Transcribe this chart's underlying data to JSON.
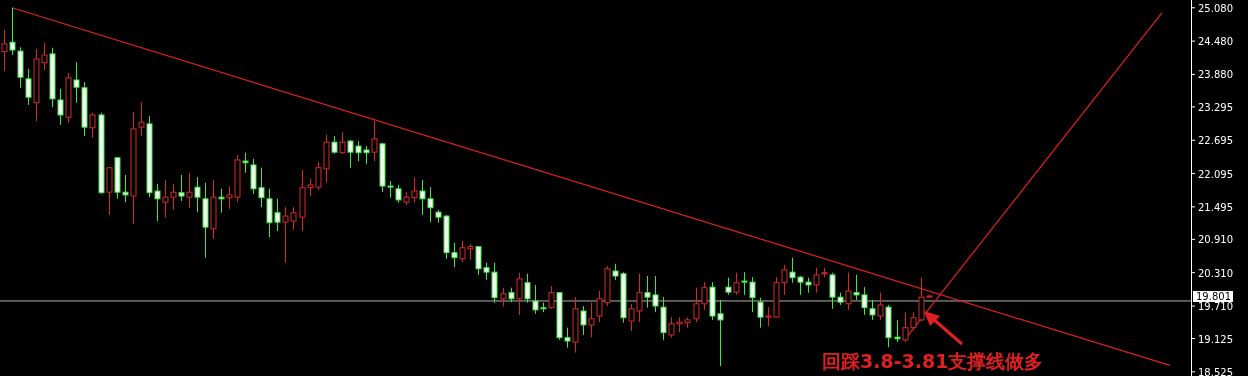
{
  "chart_data": {
    "type": "candlestick",
    "categories": [
      null,
      null,
      null,
      null,
      null,
      null,
      null,
      null,
      null,
      null,
      null,
      null,
      null,
      null,
      null,
      null,
      null,
      null,
      null,
      null,
      null,
      null,
      null,
      null,
      null,
      null,
      null,
      null,
      null,
      null,
      null,
      null,
      null,
      null,
      null,
      null,
      null,
      null,
      null,
      null,
      null,
      null,
      null,
      null,
      null,
      null,
      null,
      null,
      null,
      null,
      null,
      null,
      null,
      null,
      null,
      null,
      null,
      null,
      null,
      null,
      null,
      null,
      null,
      null,
      null,
      null,
      null,
      null,
      null,
      null,
      null,
      null,
      null,
      null,
      null,
      null,
      null,
      null,
      null,
      null,
      null,
      null,
      null,
      null,
      null,
      null,
      null,
      null,
      null,
      null,
      null,
      null,
      null,
      null,
      null,
      null,
      null,
      null,
      null,
      null,
      null,
      null,
      null,
      null,
      null,
      null,
      null,
      null,
      null,
      null,
      null,
      null,
      null,
      null,
      null,
      null,
      null,
      null,
      null,
      null,
      null,
      null,
      null,
      null,
      null,
      null,
      null,
      null,
      null,
      null,
      null,
      null,
      null,
      null,
      null,
      null,
      null,
      null,
      null,
      null,
      null,
      null,
      null,
      null,
      null,
      null,
      null,
      null
    ],
    "ohlc": [
      [
        24.29,
        24.68,
        23.94,
        24.43
      ],
      [
        24.46,
        25.08,
        24.23,
        24.32
      ],
      [
        24.3,
        24.37,
        23.64,
        23.83
      ],
      [
        23.8,
        23.98,
        23.33,
        23.47
      ],
      [
        23.37,
        24.34,
        23.04,
        24.16
      ],
      [
        24.09,
        24.45,
        23.96,
        24.23
      ],
      [
        24.25,
        24.36,
        23.29,
        23.44
      ],
      [
        23.42,
        23.62,
        22.97,
        23.15
      ],
      [
        23.11,
        23.91,
        23.01,
        23.82
      ],
      [
        23.78,
        24.1,
        23.37,
        23.65
      ],
      [
        23.64,
        23.74,
        22.77,
        22.93
      ],
      [
        22.92,
        23.19,
        22.74,
        23.15
      ],
      [
        23.15,
        23.19,
        21.73,
        21.75
      ],
      [
        21.76,
        22.21,
        21.35,
        22.2
      ],
      [
        22.38,
        22.39,
        21.64,
        21.76
      ],
      [
        21.76,
        22.07,
        21.58,
        21.71
      ],
      [
        21.69,
        23.2,
        21.19,
        22.9
      ],
      [
        22.93,
        23.38,
        22.77,
        23.02
      ],
      [
        22.99,
        23.13,
        21.67,
        21.75
      ],
      [
        21.78,
        21.91,
        21.24,
        21.64
      ],
      [
        21.58,
        21.98,
        21.3,
        21.67
      ],
      [
        21.67,
        21.91,
        21.44,
        21.76
      ],
      [
        21.75,
        22.07,
        21.6,
        21.69
      ],
      [
        21.67,
        22.11,
        21.48,
        21.76
      ],
      [
        21.85,
        22.03,
        21.4,
        21.67
      ],
      [
        21.64,
        21.93,
        20.58,
        21.13
      ],
      [
        21.1,
        21.98,
        20.92,
        21.67
      ],
      [
        21.67,
        21.82,
        21.39,
        21.64
      ],
      [
        21.66,
        21.87,
        21.46,
        21.71
      ],
      [
        21.67,
        22.43,
        21.58,
        22.34
      ],
      [
        22.32,
        22.47,
        22.11,
        22.29
      ],
      [
        22.25,
        22.36,
        21.73,
        21.82
      ],
      [
        21.84,
        22.2,
        21.49,
        21.66
      ],
      [
        21.64,
        21.82,
        20.95,
        21.21
      ],
      [
        21.39,
        21.64,
        21.06,
        21.22
      ],
      [
        21.22,
        21.49,
        20.49,
        21.33
      ],
      [
        21.24,
        21.49,
        21.08,
        21.39
      ],
      [
        21.31,
        22.16,
        21.06,
        21.84
      ],
      [
        21.84,
        22.0,
        21.69,
        21.89
      ],
      [
        21.85,
        22.3,
        21.8,
        22.2
      ],
      [
        22.18,
        22.79,
        21.93,
        22.66
      ],
      [
        22.66,
        22.77,
        22.45,
        22.48
      ],
      [
        22.47,
        22.84,
        22.45,
        22.66
      ],
      [
        22.68,
        22.7,
        22.2,
        22.48
      ],
      [
        22.59,
        22.68,
        22.32,
        22.47
      ],
      [
        22.52,
        22.59,
        22.27,
        22.47
      ],
      [
        22.48,
        23.04,
        22.32,
        22.72
      ],
      [
        22.63,
        22.65,
        21.76,
        21.87
      ],
      [
        21.87,
        21.96,
        21.66,
        21.85
      ],
      [
        21.82,
        21.89,
        21.57,
        21.62
      ],
      [
        21.58,
        21.76,
        21.53,
        21.67
      ],
      [
        21.66,
        22.03,
        21.58,
        21.78
      ],
      [
        21.78,
        21.98,
        21.35,
        21.64
      ],
      [
        21.64,
        21.85,
        21.22,
        21.48
      ],
      [
        21.4,
        21.44,
        21.21,
        21.31
      ],
      [
        21.33,
        21.35,
        20.56,
        20.67
      ],
      [
        20.67,
        20.85,
        20.41,
        20.58
      ],
      [
        20.56,
        20.88,
        20.5,
        20.76
      ],
      [
        20.74,
        20.83,
        20.54,
        20.78
      ],
      [
        20.78,
        20.78,
        20.27,
        20.38
      ],
      [
        20.4,
        20.49,
        20.18,
        20.32
      ],
      [
        20.32,
        20.49,
        19.77,
        19.86
      ],
      [
        19.84,
        20.04,
        19.7,
        19.93
      ],
      [
        19.95,
        20.04,
        19.78,
        19.84
      ],
      [
        19.84,
        20.31,
        19.55,
        20.2
      ],
      [
        20.13,
        20.29,
        19.77,
        19.84
      ],
      [
        19.8,
        20.09,
        19.57,
        19.64
      ],
      [
        19.68,
        19.77,
        19.6,
        19.66
      ],
      [
        19.68,
        20.07,
        19.66,
        19.95
      ],
      [
        19.95,
        19.96,
        19.1,
        19.14
      ],
      [
        19.14,
        19.32,
        18.96,
        19.08
      ],
      [
        19.06,
        19.87,
        18.87,
        19.66
      ],
      [
        19.62,
        19.71,
        19.19,
        19.37
      ],
      [
        19.37,
        19.77,
        19.15,
        19.48
      ],
      [
        19.53,
        19.98,
        19.42,
        19.84
      ],
      [
        19.77,
        20.43,
        19.71,
        20.38
      ],
      [
        20.34,
        20.47,
        20.18,
        20.25
      ],
      [
        20.29,
        20.32,
        19.41,
        19.5
      ],
      [
        19.44,
        19.75,
        19.26,
        19.66
      ],
      [
        19.62,
        20.29,
        19.42,
        19.95
      ],
      [
        19.95,
        20.25,
        19.68,
        19.87
      ],
      [
        19.91,
        20.25,
        19.6,
        19.71
      ],
      [
        19.69,
        19.87,
        19.1,
        19.23
      ],
      [
        19.19,
        19.51,
        19.14,
        19.39
      ],
      [
        19.39,
        19.51,
        19.24,
        19.42
      ],
      [
        19.41,
        19.5,
        19.32,
        19.46
      ],
      [
        19.48,
        20.04,
        19.42,
        19.75
      ],
      [
        19.75,
        20.14,
        19.64,
        20.04
      ],
      [
        20.05,
        20.14,
        19.46,
        19.53
      ],
      [
        19.57,
        19.82,
        18.63,
        19.46
      ],
      [
        20.05,
        20.22,
        19.91,
        19.96
      ],
      [
        19.96,
        20.31,
        19.91,
        20.13
      ],
      [
        20.16,
        20.32,
        19.91,
        20.14
      ],
      [
        20.14,
        20.23,
        19.6,
        19.86
      ],
      [
        19.78,
        19.86,
        19.32,
        19.51
      ],
      [
        19.51,
        19.69,
        19.35,
        19.53
      ],
      [
        19.51,
        20.23,
        19.51,
        20.13
      ],
      [
        20.13,
        20.45,
        19.91,
        20.36
      ],
      [
        20.32,
        20.58,
        20.13,
        20.22
      ],
      [
        20.23,
        20.25,
        19.91,
        20.14
      ],
      [
        20.14,
        20.22,
        19.95,
        20.09
      ],
      [
        20.09,
        20.4,
        19.95,
        20.27
      ],
      [
        20.29,
        20.4,
        20.23,
        20.31
      ],
      [
        20.27,
        20.31,
        19.66,
        19.87
      ],
      [
        19.87,
        19.95,
        19.73,
        19.78
      ],
      [
        19.75,
        20.31,
        19.64,
        19.98
      ],
      [
        19.95,
        20.27,
        19.82,
        19.91
      ],
      [
        19.91,
        20.05,
        19.55,
        19.68
      ],
      [
        19.66,
        19.82,
        19.46,
        19.55
      ],
      [
        19.53,
        19.95,
        19.46,
        19.73
      ],
      [
        19.69,
        19.73,
        18.97,
        19.14
      ],
      [
        19.15,
        19.46,
        19.06,
        19.12
      ],
      [
        19.1,
        19.6,
        19.06,
        19.32
      ],
      [
        19.32,
        19.6,
        19.28,
        19.5
      ],
      [
        19.46,
        20.22,
        19.44,
        19.87
      ],
      [
        19.87,
        19.91,
        19.86,
        19.89
      ],
      null,
      null,
      null,
      null,
      null,
      null,
      null,
      null,
      null,
      null,
      null,
      null,
      null,
      null,
      null,
      null,
      null,
      null,
      null,
      null,
      null,
      null,
      null,
      null,
      null,
      null,
      null,
      null,
      null,
      null,
      null,
      null
    ],
    "colors": [
      "#d42a2a",
      "#3ee83e",
      "#3ee83e",
      "#3ee83e",
      "#d42a2a",
      "#d42a2a",
      "#3ee83e",
      "#3ee83e",
      "#d42a2a",
      "#3ee83e",
      "#3ee83e",
      "#d42a2a",
      "#3ee83e",
      "#d42a2a",
      "#3ee83e",
      "#3ee83e",
      "#d42a2a",
      "#d42a2a",
      "#3ee83e",
      "#3ee83e",
      "#d42a2a",
      "#d42a2a",
      "#3ee83e",
      "#d42a2a",
      "#3ee83e",
      "#3ee83e",
      "#d42a2a",
      "#3ee83e",
      "#d42a2a",
      "#d42a2a",
      "#3ee83e",
      "#3ee83e",
      "#3ee83e",
      "#3ee83e",
      "#3ee83e",
      "#d42a2a",
      "#d42a2a",
      "#d42a2a",
      "#d42a2a",
      "#d42a2a",
      "#d42a2a",
      "#3ee83e",
      "#d42a2a",
      "#3ee83e",
      "#3ee83e",
      "#3ee83e",
      "#d42a2a",
      "#3ee83e",
      "#3ee83e",
      "#3ee83e",
      "#d42a2a",
      "#d42a2a",
      "#3ee83e",
      "#3ee83e",
      "#3ee83e",
      "#3ee83e",
      "#3ee83e",
      "#d42a2a",
      "#d42a2a",
      "#3ee83e",
      "#3ee83e",
      "#3ee83e",
      "#d42a2a",
      "#3ee83e",
      "#d42a2a",
      "#3ee83e",
      "#3ee83e",
      "#3ee83e",
      "#d42a2a",
      "#3ee83e",
      "#3ee83e",
      "#d42a2a",
      "#3ee83e",
      "#d42a2a",
      "#d42a2a",
      "#d42a2a",
      "#3ee83e",
      "#3ee83e",
      "#d42a2a",
      "#d42a2a",
      "#3ee83e",
      "#3ee83e",
      "#3ee83e",
      "#d42a2a",
      "#d42a2a",
      "#d42a2a",
      "#d42a2a",
      "#d42a2a",
      "#3ee83e",
      "#3ee83e",
      "#3ee83e",
      "#d42a2a",
      "#3ee83e",
      "#3ee83e",
      "#3ee83e",
      "#d42a2a",
      "#d42a2a",
      "#d42a2a",
      "#3ee83e",
      "#3ee83e",
      "#3ee83e",
      "#d42a2a",
      "#d42a2a",
      "#3ee83e",
      "#3ee83e",
      "#d42a2a",
      "#3ee83e",
      "#3ee83e",
      "#3ee83e",
      "#d42a2a",
      "#3ee83e",
      "#3ee83e",
      "#d42a2a",
      "#d42a2a",
      "#d42a2a",
      "#d42a2a",
      null,
      null,
      null,
      null,
      null,
      null,
      null,
      null,
      null,
      null,
      null,
      null,
      null,
      null,
      null,
      null,
      null,
      null,
      null,
      null,
      null,
      null,
      null,
      null,
      null,
      null,
      null,
      null,
      null,
      null,
      null,
      null
    ],
    "series": [
      {
        "type": "line",
        "color": "#e02020",
        "values": [
          null,
          25.08,
          null,
          null,
          null,
          null,
          null,
          null,
          null,
          null,
          null,
          null,
          null,
          null,
          null,
          null,
          null,
          null,
          null,
          null,
          null,
          null,
          null,
          null,
          null,
          null,
          null,
          null,
          null,
          null,
          null,
          null,
          null,
          null,
          null,
          null,
          null,
          null,
          null,
          null,
          null,
          null,
          null,
          null,
          null,
          null,
          null,
          null,
          null,
          null,
          null,
          null,
          null,
          null,
          null,
          null,
          null,
          null,
          null,
          null,
          null,
          null,
          null,
          null,
          null,
          null,
          null,
          null,
          null,
          null,
          null,
          null,
          null,
          null,
          null,
          null,
          null,
          null,
          null,
          null,
          null,
          null,
          null,
          null,
          null,
          null,
          null,
          null,
          null,
          null,
          null,
          null,
          null,
          null,
          null,
          null,
          null,
          null,
          null,
          null,
          null,
          null,
          null,
          null,
          null,
          null,
          null,
          null,
          null,
          null,
          null,
          null,
          null,
          null,
          null,
          null,
          null,
          null,
          null,
          null,
          null,
          null,
          null,
          null,
          null,
          null,
          null,
          null,
          null,
          null,
          null,
          null,
          null,
          null,
          null,
          null,
          null,
          null,
          null,
          null,
          null,
          null,
          null,
          null,
          null,
          18.64,
          null,
          null
        ]
      },
      {
        "type": "line",
        "color": "#e02020",
        "values": [
          null,
          null,
          null,
          null,
          null,
          null,
          null,
          null,
          null,
          null,
          null,
          null,
          null,
          null,
          null,
          null,
          null,
          null,
          null,
          null,
          null,
          null,
          null,
          null,
          null,
          null,
          null,
          null,
          null,
          null,
          null,
          null,
          null,
          null,
          null,
          null,
          null,
          null,
          null,
          null,
          null,
          null,
          null,
          null,
          null,
          null,
          null,
          null,
          null,
          null,
          null,
          null,
          null,
          null,
          null,
          null,
          null,
          null,
          null,
          null,
          null,
          null,
          null,
          null,
          null,
          null,
          null,
          null,
          null,
          null,
          null,
          null,
          null,
          null,
          null,
          null,
          null,
          null,
          null,
          null,
          null,
          null,
          null,
          null,
          null,
          null,
          null,
          null,
          null,
          null,
          null,
          null,
          null,
          null,
          null,
          null,
          null,
          null,
          null,
          null,
          null,
          null,
          null,
          null,
          null,
          null,
          null,
          null,
          null,
          null,
          null,
          null,
          19.1,
          null,
          null,
          null,
          null,
          null,
          null,
          null,
          null,
          null,
          null,
          null,
          null,
          null,
          null,
          null,
          null,
          null,
          null,
          null,
          null,
          null,
          null,
          null,
          null,
          null,
          null,
          null,
          null,
          null,
          null,
          null,
          24.99,
          null,
          null,
          null
        ]
      }
    ],
    "ylim": [
      18.45,
      25.22
    ],
    "yticks": [
      {
        "value": 25.08,
        "label": "25.080"
      },
      {
        "value": 24.48,
        "label": "24.480"
      },
      {
        "value": 23.88,
        "label": "23.880"
      },
      {
        "value": 23.295,
        "label": "23.295"
      },
      {
        "value": 22.695,
        "label": "22.695"
      },
      {
        "value": 22.095,
        "label": "22.095"
      },
      {
        "value": 21.495,
        "label": "21.495"
      },
      {
        "value": 20.91,
        "label": "20.910"
      },
      {
        "value": 20.31,
        "label": "20.310"
      },
      {
        "value": 19.71,
        "label": "19.710"
      },
      {
        "value": 19.125,
        "label": "19.125"
      },
      {
        "value": 18.525,
        "label": "18.525"
      }
    ],
    "tick_labels": "y",
    "grid": false,
    "ref_lines": [
      {
        "axis": "y",
        "value": 19.801,
        "label": "19.801",
        "color": "#b0b0b0"
      }
    ],
    "annotations": [
      "回踩3.8-3.81支撑线做多"
    ]
  }
}
